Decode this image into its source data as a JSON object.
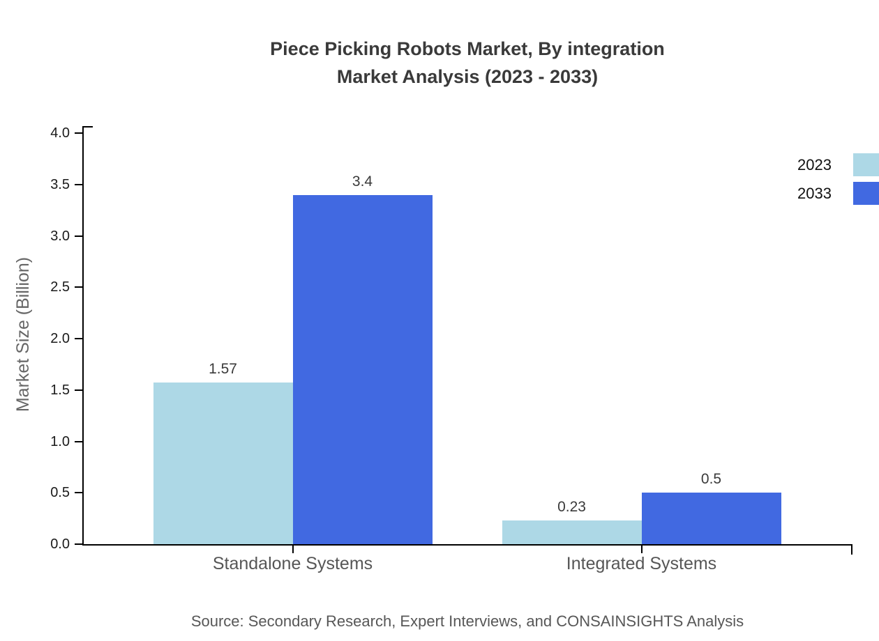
{
  "title": {
    "line1": "Piece Picking Robots Market, By integration",
    "line2": "Market Analysis (2023 - 2033)"
  },
  "footer": {
    "source": "Source: Secondary Research, Expert Interviews, and CONSAINSIGHTS Analysis"
  },
  "chart_data": {
    "type": "bar",
    "title": "Piece Picking Robots Market, By integration Market Analysis (2023 - 2033)",
    "categories": [
      "Standalone Systems",
      "Integrated Systems"
    ],
    "series": [
      {
        "name": "2023",
        "color": "#ADD8E6",
        "values": [
          1.57,
          0.23
        ]
      },
      {
        "name": "2033",
        "color": "#4169E1",
        "values": [
          3.4,
          0.5
        ]
      }
    ],
    "xlabel": "",
    "ylabel": "Market Size (Billion)",
    "ylim": [
      0.0,
      4.0
    ],
    "yticks": [
      "0.0",
      "0.5",
      "1.0",
      "1.5",
      "2.0",
      "2.5",
      "3.0",
      "3.5",
      "4.0"
    ],
    "grid": false,
    "legend_position": "right",
    "bar_value_labels_shown": true,
    "colors": {
      "axis": "#000000",
      "title_text": "#3a3a3a",
      "tick_label_text": "#1a1a1a",
      "category_text": "#565656",
      "ylabel_text": "#666666",
      "source_text": "#575757"
    }
  }
}
